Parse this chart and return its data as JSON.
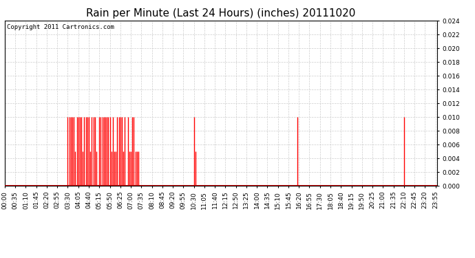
{
  "title": "Rain per Minute (Last 24 Hours) (inches) 20111020",
  "copyright_text": "Copyright 2011 Cartronics.com",
  "background_color": "#ffffff",
  "plot_bg_color": "#ffffff",
  "grid_color": "#cccccc",
  "bar_color": "#ff0000",
  "baseline_color": "#cc0000",
  "ylim": [
    0.0,
    0.024
  ],
  "yticks": [
    0.0,
    0.002,
    0.004,
    0.006,
    0.008,
    0.01,
    0.012,
    0.014,
    0.016,
    0.018,
    0.02,
    0.022,
    0.024
  ],
  "title_fontsize": 11,
  "tick_fontsize": 6.5,
  "copyright_fontsize": 6.5,
  "x_tick_interval_minutes": 35,
  "total_minutes": 1440,
  "rain_data": [
    {
      "minute": 210,
      "value": 0.01
    },
    {
      "minute": 215,
      "value": 0.01
    },
    {
      "minute": 220,
      "value": 0.01
    },
    {
      "minute": 225,
      "value": 0.01
    },
    {
      "minute": 230,
      "value": 0.01
    },
    {
      "minute": 235,
      "value": 0.005
    },
    {
      "minute": 240,
      "value": 0.01
    },
    {
      "minute": 245,
      "value": 0.01
    },
    {
      "minute": 250,
      "value": 0.01
    },
    {
      "minute": 255,
      "value": 0.01
    },
    {
      "minute": 260,
      "value": 0.005
    },
    {
      "minute": 265,
      "value": 0.01
    },
    {
      "minute": 270,
      "value": 0.01
    },
    {
      "minute": 275,
      "value": 0.01
    },
    {
      "minute": 280,
      "value": 0.01
    },
    {
      "minute": 285,
      "value": 0.005
    },
    {
      "minute": 290,
      "value": 0.01
    },
    {
      "minute": 295,
      "value": 0.01
    },
    {
      "minute": 300,
      "value": 0.01
    },
    {
      "minute": 305,
      "value": 0.005
    },
    {
      "minute": 315,
      "value": 0.01
    },
    {
      "minute": 320,
      "value": 0.01
    },
    {
      "minute": 325,
      "value": 0.01
    },
    {
      "minute": 330,
      "value": 0.01
    },
    {
      "minute": 335,
      "value": 0.01
    },
    {
      "minute": 340,
      "value": 0.01
    },
    {
      "minute": 345,
      "value": 0.01
    },
    {
      "minute": 350,
      "value": 0.01
    },
    {
      "minute": 355,
      "value": 0.005
    },
    {
      "minute": 360,
      "value": 0.01
    },
    {
      "minute": 365,
      "value": 0.005
    },
    {
      "minute": 370,
      "value": 0.005
    },
    {
      "minute": 375,
      "value": 0.01
    },
    {
      "minute": 380,
      "value": 0.01
    },
    {
      "minute": 385,
      "value": 0.01
    },
    {
      "minute": 390,
      "value": 0.01
    },
    {
      "minute": 395,
      "value": 0.005
    },
    {
      "minute": 400,
      "value": 0.01
    },
    {
      "minute": 410,
      "value": 0.01
    },
    {
      "minute": 415,
      "value": 0.005
    },
    {
      "minute": 420,
      "value": 0.005
    },
    {
      "minute": 425,
      "value": 0.01
    },
    {
      "minute": 430,
      "value": 0.01
    },
    {
      "minute": 435,
      "value": 0.005
    },
    {
      "minute": 440,
      "value": 0.005
    },
    {
      "minute": 445,
      "value": 0.005
    },
    {
      "minute": 630,
      "value": 0.01
    },
    {
      "minute": 635,
      "value": 0.005
    },
    {
      "minute": 975,
      "value": 0.01
    },
    {
      "minute": 1330,
      "value": 0.01
    }
  ]
}
